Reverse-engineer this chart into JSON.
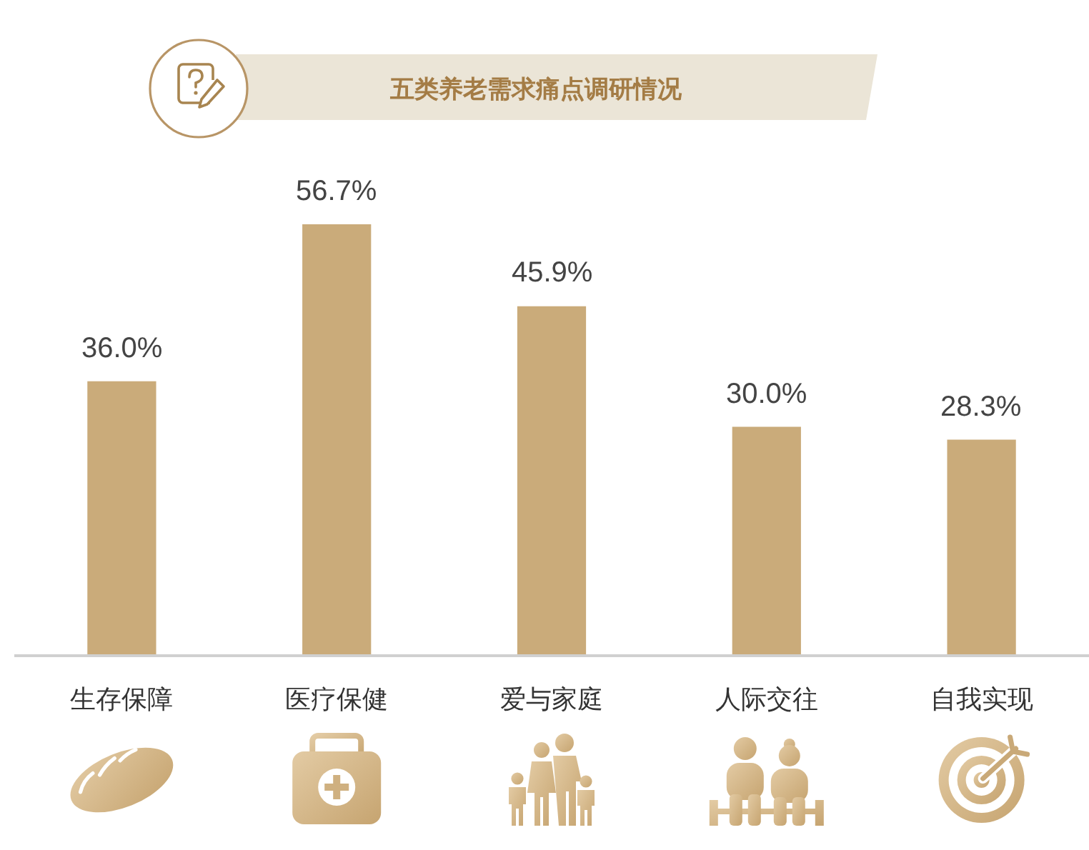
{
  "chart_data": {
    "type": "bar",
    "title": "五类养老需求痛点调研情况",
    "categories": [
      "生存保障",
      "医疗保健",
      "爱与家庭",
      "人际交往",
      "自我实现"
    ],
    "values": [
      36.0,
      56.7,
      45.9,
      30.0,
      28.3
    ],
    "value_labels": [
      "36.0%",
      "56.7%",
      "45.9%",
      "30.0%",
      "28.3%"
    ],
    "color": "#caab7a"
  }
}
